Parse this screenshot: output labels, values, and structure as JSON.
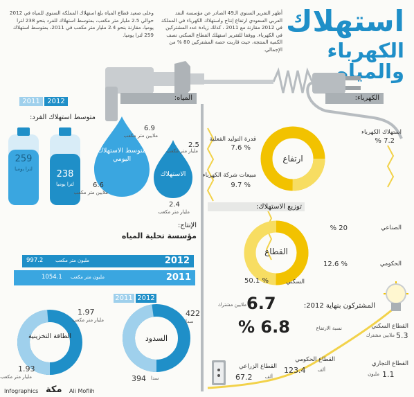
{
  "header": {
    "title_main": "استهلاك",
    "title_sub": "الكهرباء والمياه"
  },
  "intro": {
    "electricity_para": "أظهر التقرير السنوي الـ49 الصادر عن مؤسسة النقد العربي السعودي ارتفاع إنتاج واستهلاك الكهرباء في المملكة في 2012 مقارنة مع 2011 ، كذلك زيادة عدد المشتركين في الكهرباء. ووفقا للتقرير استهلك القطاع السكني نصف الكمية المنتجة، حيث قاربت حصة المشتركين 80 % من الإجمالي.",
    "water_para": "وعلى صعيد قطاع المياه بلغ استهلاك المملكة السنوي للمياه في 2012 حوالي 2.5 مليار متر مكعب، بمتوسط استهلاك للفرد بنحو 238 لترا يوميا، مقارنة بنحو 2.4 مليار متر مكعب في 2011، بمتوسط استهلاك 259 لترا يوميا."
  },
  "electricity": {
    "section_label": "الكهرباء:",
    "rise": {
      "center_label": "ارتفاع",
      "items": [
        {
          "label": "استهلاك الكهرباء",
          "value": "7.2 %"
        },
        {
          "label": "قدرة التوليد الفعلية",
          "value": "% 7.6"
        },
        {
          "label": "مبيعات شركة الكهرباء",
          "value": "% 9.7"
        }
      ]
    },
    "distribution": {
      "title": "توزيع الاستهلاك:",
      "center_label": "القطاع",
      "items": [
        {
          "label": "الصناعي",
          "value": "20 %",
          "pct": 20
        },
        {
          "label": "الحكومي",
          "value": "% 12.6",
          "pct": 12.6
        },
        {
          "label": "السكني",
          "value": "% 50.1",
          "pct": 50.1
        }
      ]
    },
    "subscribers": {
      "label": "المشتركون بنهاية 2012:",
      "value": "6.7",
      "unit": "ملايين مشترك",
      "growth_label": "نسبة الارتفاع",
      "growth_value": "6.8 %"
    },
    "sectors": [
      {
        "label": "القطاع السكني",
        "value": "5.3",
        "unit": "ملايين مشترك"
      },
      {
        "label": "القطاع التجاري",
        "value": "1.1",
        "unit": "مليون"
      },
      {
        "label": "القطاع الحكومي",
        "value": "123.4",
        "unit": "ألف"
      },
      {
        "label": "القطاع الزراعي",
        "value": "67.2",
        "unit": "ألف"
      }
    ]
  },
  "water": {
    "section_label": "المياه:",
    "per_capita": {
      "title": "متوسط استهلاك الفرد:",
      "year_2012": "2012",
      "year_2011": "2011",
      "bottle_2012_value": "238",
      "bottle_2011_value": "259",
      "bottle_unit": "لترا يوميا"
    },
    "drops": {
      "avg_label": "متوسط الاستهلاك اليومي",
      "avg_2012": {
        "value": "6.9",
        "unit": "ملايين متر مكعب"
      },
      "avg_2011": {
        "value": "6.6",
        "unit": "ملايين متر مكعب"
      },
      "cons_label": "الاستهلاك",
      "cons_2012": {
        "value": "2.5",
        "unit": "مليار متر مكعب"
      },
      "cons_2011": {
        "value": "2.4",
        "unit": "مليار متر مكعب"
      }
    },
    "desal": {
      "label": "الإنتاج:",
      "name": "مؤسسة تحلية المياه",
      "bars": [
        {
          "year": "2012",
          "value": "997.2",
          "unit": "مليون متر مكعب",
          "amount": 997.2
        },
        {
          "year": "2011",
          "value": "1054.1",
          "unit": "مليون متر مكعب",
          "amount": 1054.1
        }
      ]
    },
    "dams": {
      "year_2012": "2012",
      "year_2011": "2011",
      "center_label": "السدود",
      "v2012": "422",
      "v2011": "394",
      "unit": "سدا"
    },
    "storage": {
      "center_label": "الطاقة التخزينية",
      "v2012": "1.97",
      "v2011": "1.93",
      "unit": "مليار متر مكعب"
    }
  },
  "footer": {
    "left_label": "Infographics",
    "brand": "مكة",
    "author": "Ali Moflih"
  },
  "colors": {
    "blue": "#1f8fc8",
    "yellow": "#f2c200",
    "grey": "#aab0b4"
  }
}
